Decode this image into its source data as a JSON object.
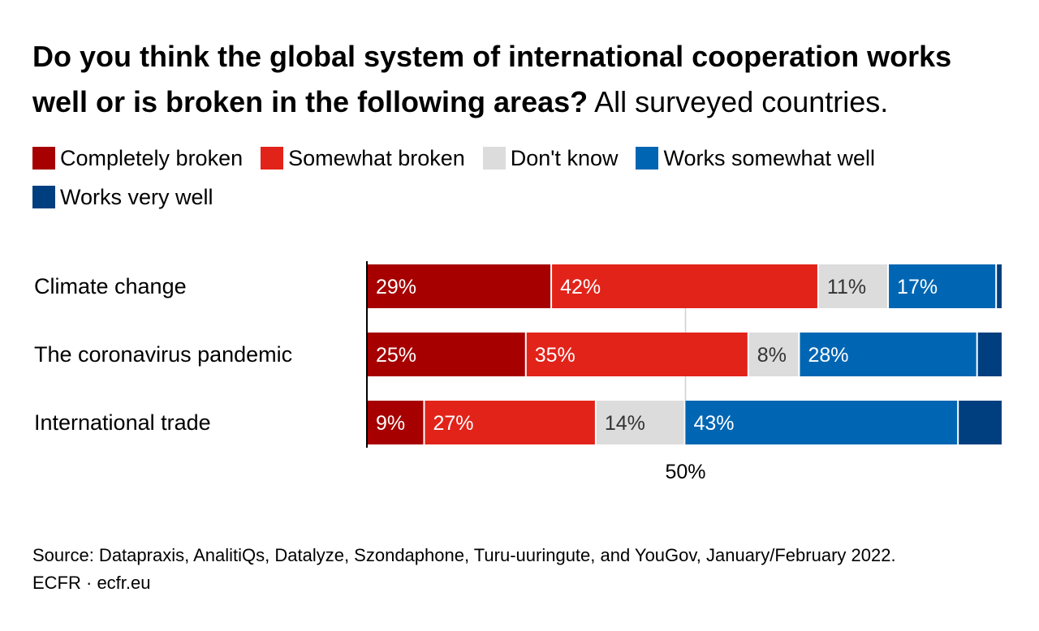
{
  "title": {
    "bold": "Do you think the global system of international cooperation works well or is broken in the following areas?",
    "subtitle": "All surveyed countries."
  },
  "legend": [
    {
      "label": "Completely broken",
      "color": "#a60000"
    },
    {
      "label": "Somewhat broken",
      "color": "#e2231a"
    },
    {
      "label": "Don't know",
      "color": "#dcdcdc"
    },
    {
      "label": "Works somewhat well",
      "color": "#0066b3"
    },
    {
      "label": "Works very well",
      "color": "#003f7f"
    }
  ],
  "chart_data": {
    "type": "bar",
    "orientation": "horizontal",
    "stacked": true,
    "categories": [
      "Climate change",
      "The coronavirus pandemic",
      "International trade"
    ],
    "series": [
      {
        "name": "Completely broken",
        "color": "#a60000",
        "text_color": "#ffffff",
        "values": [
          29,
          25,
          9
        ],
        "labels": [
          "29%",
          "25%",
          "9%"
        ]
      },
      {
        "name": "Somewhat broken",
        "color": "#e2231a",
        "text_color": "#ffffff",
        "values": [
          42,
          35,
          27
        ],
        "labels": [
          "42%",
          "35%",
          "27%"
        ]
      },
      {
        "name": "Don't know",
        "color": "#dcdcdc",
        "text_color": "#333333",
        "values": [
          11,
          8,
          14
        ],
        "labels": [
          "11%",
          "8%",
          "14%"
        ]
      },
      {
        "name": "Works somewhat well",
        "color": "#0066b3",
        "text_color": "#ffffff",
        "values": [
          17,
          28,
          43
        ],
        "labels": [
          "17%",
          "28%",
          "43%"
        ]
      },
      {
        "name": "Works very well",
        "color": "#003f7f",
        "text_color": "#ffffff",
        "values": [
          1,
          4,
          7
        ],
        "labels": [
          "",
          "",
          ""
        ]
      }
    ],
    "xlim": [
      0,
      100
    ],
    "reference_line": {
      "value": 50,
      "label": "50%"
    }
  },
  "source": {
    "line1": "Source: Datapraxis, AnalitiQs, Datalyze, Szondaphone, Turu-uuringute, and YouGov, January/February 2022.",
    "line2": "ECFR · ecfr.eu"
  }
}
